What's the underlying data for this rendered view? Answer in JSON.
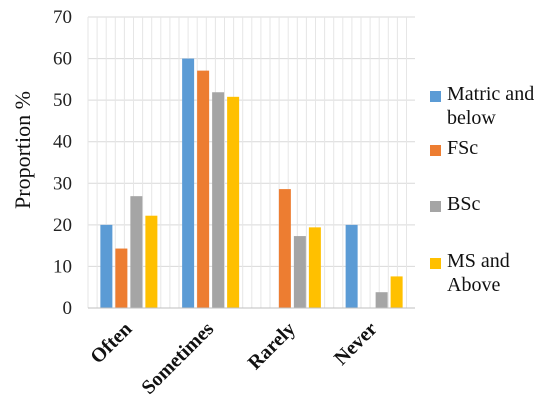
{
  "chart_data": {
    "type": "bar",
    "categories": [
      "Often",
      "Sometimes",
      "Rarely",
      "Never"
    ],
    "series": [
      {
        "name": "Matric and below",
        "color": "#5B9BD5",
        "values": [
          20,
          60,
          0,
          20
        ]
      },
      {
        "name": "FSc",
        "color": "#ED7D31",
        "values": [
          14.3,
          57.1,
          28.6,
          0
        ]
      },
      {
        "name": "BSc",
        "color": "#A5A5A5",
        "values": [
          26.9,
          51.9,
          17.3,
          3.8
        ]
      },
      {
        "name": "MS and Above",
        "color": "#FFC000",
        "values": [
          22.2,
          50.8,
          19.4,
          7.6
        ]
      }
    ],
    "ylabel": "Proportion %",
    "xlabel": "",
    "ylim": [
      0,
      70
    ],
    "yticks": [
      0,
      10,
      20,
      30,
      40,
      50,
      60,
      70
    ],
    "grid": true,
    "legend_position": "right"
  },
  "legend_labels": [
    "Matric and\nbelow",
    "FSc",
    "BSc",
    "MS and\nAbove"
  ]
}
